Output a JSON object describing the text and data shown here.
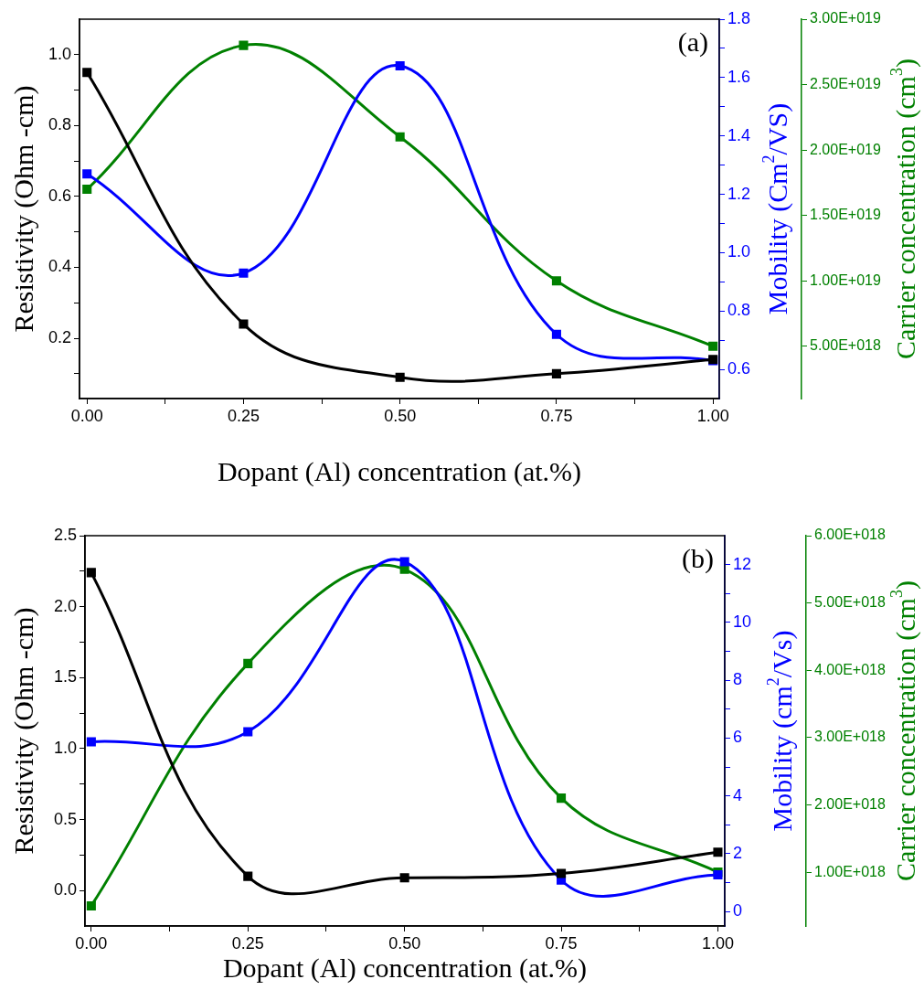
{
  "chart_data": [
    {
      "type": "line",
      "xlabel": "Dopant (Al) concentration (at.%)",
      "ylabel": "Resistivity (Ohm -cm)",
      "y2label": "Mobility (Cm$^{2}$/VS)",
      "y3label": "Carrier concentration (cm$^{3}$)",
      "annotations": [
        "(a)"
      ],
      "marker": "square",
      "grid": false,
      "legend": false,
      "x": [
        0,
        0.25,
        0.5,
        0.75,
        1
      ],
      "xlim": [
        -0.012,
        1.01
      ],
      "xticks": [
        {
          "value": 0,
          "label": "0.00"
        },
        {
          "value": 0.125,
          "label": null
        },
        {
          "value": 0.25,
          "label": "0.25"
        },
        {
          "value": 0.375,
          "label": null
        },
        {
          "value": 0.5,
          "label": "0.50"
        },
        {
          "value": 0.625,
          "label": null
        },
        {
          "value": 0.75,
          "label": "0.75"
        },
        {
          "value": 0.875,
          "label": null
        },
        {
          "value": 1,
          "label": "1.00"
        }
      ],
      "ylim": [
        0.03,
        1.1
      ],
      "yticks": [
        {
          "value": 0.1,
          "label": null
        },
        {
          "value": 0.2,
          "label": "0.2"
        },
        {
          "value": 0.3,
          "label": null
        },
        {
          "value": 0.4,
          "label": "0.4"
        },
        {
          "value": 0.5,
          "label": null
        },
        {
          "value": 0.6,
          "label": "0.6"
        },
        {
          "value": 0.7,
          "label": null
        },
        {
          "value": 0.8,
          "label": "0.8"
        },
        {
          "value": 0.9,
          "label": null
        },
        {
          "value": 1,
          "label": "1.0"
        }
      ],
      "y2lim": [
        0.5,
        1.8
      ],
      "y2ticks": [
        {
          "value": 0.6,
          "label": "0.6"
        },
        {
          "value": 0.7,
          "label": null
        },
        {
          "value": 0.8,
          "label": "0.8"
        },
        {
          "value": 0.9,
          "label": null
        },
        {
          "value": 1,
          "label": "1.0"
        },
        {
          "value": 1.1,
          "label": null
        },
        {
          "value": 1.2,
          "label": "1.2"
        },
        {
          "value": 1.3,
          "label": null
        },
        {
          "value": 1.4,
          "label": "1.4"
        },
        {
          "value": 1.5,
          "label": null
        },
        {
          "value": 1.6,
          "label": "1.6"
        },
        {
          "value": 1.7,
          "label": null
        },
        {
          "value": 1.8,
          "label": "1.8"
        }
      ],
      "y3lim": [
        1e+18,
        3e+19
      ],
      "y3ticks": [
        {
          "value": 5e+18,
          "label": "5.00E+018"
        },
        {
          "value": 1e+19,
          "label": "1.00E+019"
        },
        {
          "value": 1.5e+19,
          "label": "1.50E+019"
        },
        {
          "value": 2e+19,
          "label": "2.00E+019"
        },
        {
          "value": 2.5e+19,
          "label": "2.50E+019"
        },
        {
          "value": 3e+19,
          "label": "3.00E+019"
        }
      ],
      "series": [
        {
          "color": "#000000",
          "values": [
            0.95,
            0.24,
            0.09,
            0.1,
            0.14
          ]
        },
        {
          "color": "#0000ff",
          "axis": "y2",
          "values": [
            1.27,
            0.93,
            1.64,
            0.72,
            0.63
          ]
        },
        {
          "color": "#008000",
          "axis": "y3",
          "values": [
            1.7e+19,
            2.8e+19,
            2.1e+19,
            1e+19,
            5e+18
          ]
        }
      ]
    },
    {
      "type": "line",
      "xlabel": "Dopant (Al) concentration (at.%)",
      "ylabel": "Resistivity (Ohm -cm)",
      "y2label": "Mobility (cm$^{2}$/Vs)",
      "y3label": "Carrier concentration (cm$^{3}$)",
      "annotations": [
        "(b)"
      ],
      "marker": "square",
      "grid": false,
      "legend": false,
      "x": [
        0,
        0.25,
        0.5,
        0.75,
        1
      ],
      "xlim": [
        -0.01,
        1.011
      ],
      "xticks": [
        {
          "value": 0,
          "label": "0.00"
        },
        {
          "value": 0.125,
          "label": null
        },
        {
          "value": 0.25,
          "label": "0.25"
        },
        {
          "value": 0.375,
          "label": null
        },
        {
          "value": 0.5,
          "label": "0.50"
        },
        {
          "value": 0.625,
          "label": null
        },
        {
          "value": 0.75,
          "label": "0.75"
        },
        {
          "value": 0.875,
          "label": null
        },
        {
          "value": 1,
          "label": "1.00"
        }
      ],
      "ylim": [
        -0.25,
        2.5
      ],
      "yticks": [
        {
          "value": 0,
          "label": "0.0"
        },
        {
          "value": 0.25,
          "label": null
        },
        {
          "value": 0.5,
          "label": "0.5"
        },
        {
          "value": 0.75,
          "label": null
        },
        {
          "value": 1,
          "label": "1.0"
        },
        {
          "value": 1.25,
          "label": null
        },
        {
          "value": 1.5,
          "label": "1.5"
        },
        {
          "value": 1.75,
          "label": null
        },
        {
          "value": 2,
          "label": "2.0"
        },
        {
          "value": 2.25,
          "label": null
        },
        {
          "value": 2.5,
          "label": "2.5"
        }
      ],
      "y2lim": [
        -0.5,
        13
      ],
      "y2ticks": [
        0,
        {
          "value": 1,
          "label": null
        },
        2,
        {
          "value": 3,
          "label": null
        },
        4,
        {
          "value": 5,
          "label": null
        },
        6,
        {
          "value": 7,
          "label": null
        },
        8,
        {
          "value": 9,
          "label": null
        },
        10,
        {
          "value": 11,
          "label": null
        },
        12
      ],
      "y3lim": [
        2e+17,
        6e+18
      ],
      "y3ticks": [
        {
          "value": 1e+18,
          "label": "1.00E+018"
        },
        {
          "value": 2e+18,
          "label": "2.00E+018"
        },
        {
          "value": 3e+18,
          "label": "3.00E+018"
        },
        {
          "value": 4e+18,
          "label": "4.00E+018"
        },
        {
          "value": 5e+18,
          "label": "5.00E+018"
        },
        {
          "value": 6e+18,
          "label": "6.00E+018"
        }
      ],
      "series": [
        {
          "color": "#000000",
          "values": [
            2.24,
            0.1,
            0.09,
            0.12,
            0.27
          ]
        },
        {
          "color": "#0000ff",
          "axis": "y2",
          "values": [
            5.87,
            6.22,
            12.1,
            1.09,
            1.27
          ]
        },
        {
          "color": "#008000",
          "axis": "y3",
          "values": [
            5e+17,
            4.1e+18,
            5.5e+18,
            2.1e+18,
            1e+18
          ]
        }
      ]
    }
  ]
}
